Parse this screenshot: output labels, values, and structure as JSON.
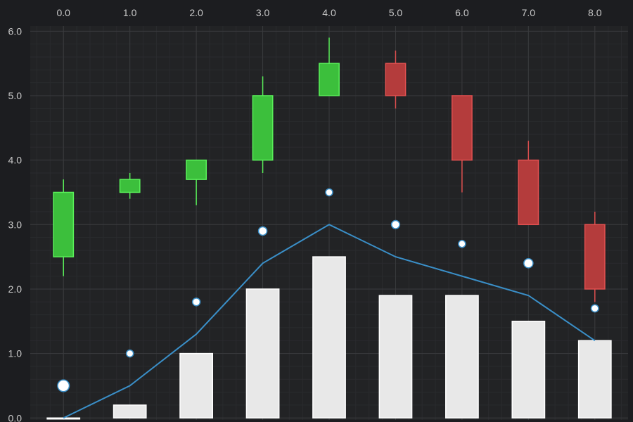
{
  "chart_data": {
    "type": "candlestick",
    "x_ticks": [
      "0.0",
      "1.0",
      "2.0",
      "3.0",
      "4.0",
      "5.0",
      "6.0",
      "7.0",
      "8.0"
    ],
    "y_ticks": [
      "0.0",
      "1.0",
      "2.0",
      "3.0",
      "4.0",
      "5.0",
      "6.0"
    ],
    "xlim": [
      -0.5,
      8.5
    ],
    "ylim": [
      -0.03,
      6.08
    ],
    "grid": true,
    "x_axis_position": "top",
    "y_axis_position": "left",
    "candles": [
      {
        "x": 0,
        "open": 2.5,
        "high": 3.7,
        "low": 2.2,
        "close": 3.5
      },
      {
        "x": 1,
        "open": 3.5,
        "high": 3.8,
        "low": 3.4,
        "close": 3.7
      },
      {
        "x": 2,
        "open": 3.7,
        "high": 4.0,
        "low": 3.3,
        "close": 4.0
      },
      {
        "x": 3,
        "open": 4.0,
        "high": 5.3,
        "low": 3.8,
        "close": 5.0
      },
      {
        "x": 4,
        "open": 5.0,
        "high": 5.9,
        "low": 5.0,
        "close": 5.5
      },
      {
        "x": 5,
        "open": 5.5,
        "high": 5.7,
        "low": 4.8,
        "close": 5.0
      },
      {
        "x": 6,
        "open": 5.0,
        "high": 5.0,
        "low": 3.5,
        "close": 4.0
      },
      {
        "x": 7,
        "open": 4.0,
        "high": 4.3,
        "low": 3.0,
        "close": 3.0
      },
      {
        "x": 8,
        "open": 3.0,
        "high": 3.2,
        "low": 1.8,
        "close": 2.0
      }
    ],
    "bars": [
      {
        "x": 0,
        "value": 0.0
      },
      {
        "x": 1,
        "value": 0.2
      },
      {
        "x": 2,
        "value": 1.0
      },
      {
        "x": 3,
        "value": 2.0
      },
      {
        "x": 4,
        "value": 2.5
      },
      {
        "x": 5,
        "value": 1.9
      },
      {
        "x": 6,
        "value": 1.9
      },
      {
        "x": 7,
        "value": 1.5
      },
      {
        "x": 8,
        "value": 1.2
      }
    ],
    "line": [
      {
        "x": 0,
        "y": 0.0
      },
      {
        "x": 1,
        "y": 0.5
      },
      {
        "x": 2,
        "y": 1.3
      },
      {
        "x": 3,
        "y": 2.4
      },
      {
        "x": 4,
        "y": 3.0
      },
      {
        "x": 5,
        "y": 2.5
      },
      {
        "x": 6,
        "y": 2.2
      },
      {
        "x": 7,
        "y": 1.9
      },
      {
        "x": 8,
        "y": 1.2
      }
    ],
    "bubbles": [
      {
        "x": 0,
        "y": 0.5,
        "size": 3
      },
      {
        "x": 1,
        "y": 1.0,
        "size": 1
      },
      {
        "x": 2,
        "y": 1.8,
        "size": 1.2
      },
      {
        "x": 3,
        "y": 2.9,
        "size": 1.5
      },
      {
        "x": 4,
        "y": 3.5,
        "size": 1
      },
      {
        "x": 5,
        "y": 3.0,
        "size": 1.4
      },
      {
        "x": 6,
        "y": 2.7,
        "size": 1
      },
      {
        "x": 7,
        "y": 2.4,
        "size": 1.8
      },
      {
        "x": 8,
        "y": 1.7,
        "size": 1.1
      }
    ],
    "colors": {
      "background": "#1c1d20",
      "plot_background": "#222325",
      "grid_major": "#3a3b3e",
      "grid_minor": "#2a2b2e",
      "up_fill": "#3cbf3c",
      "up_stroke": "#5af05a",
      "down_fill": "#b43c3c",
      "down_stroke": "#e05050",
      "bar_fill": "#e8e8e8",
      "bar_stroke": "#ffffff",
      "line": "#3a8fc8",
      "bubble_fill": "#ffffff",
      "bubble_stroke": "#3a8fc8",
      "tick_text": "#c9c9c9"
    }
  }
}
